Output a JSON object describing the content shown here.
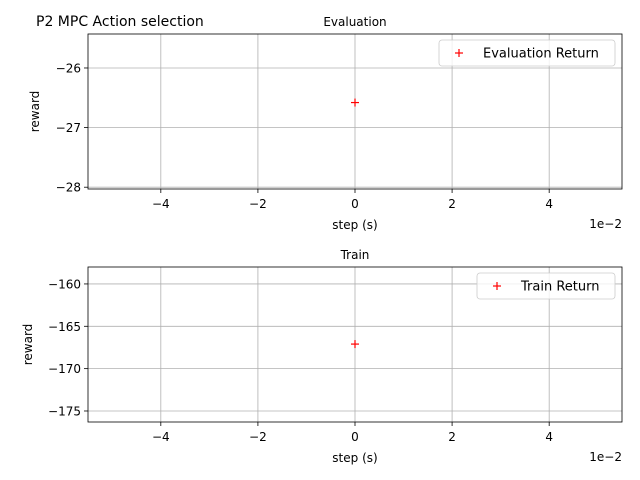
{
  "figure": {
    "suptitle": "P2 MPC Action selection"
  },
  "chart_data": [
    {
      "type": "scatter",
      "title": "Evaluation",
      "xlabel": "step (s)",
      "ylabel": "reward",
      "x_offset_label": "1e−2",
      "xlim": [
        -5.5,
        5.5
      ],
      "ylim": [
        -28.03,
        -25.43
      ],
      "xticks": [
        -4,
        -2,
        0,
        2,
        4
      ],
      "xtick_labels": [
        "−4",
        "−2",
        "0",
        "2",
        "4"
      ],
      "yticks": [
        -28,
        -27,
        -26
      ],
      "ytick_labels": [
        "−28",
        "−27",
        "−26"
      ],
      "grid": true,
      "legend_position": "top-right",
      "series": [
        {
          "name": "Evaluation Return",
          "marker": "+",
          "color": "#ff0000",
          "x": [
            0
          ],
          "y": [
            -26.58
          ]
        }
      ]
    },
    {
      "type": "scatter",
      "title": "Train",
      "xlabel": "step (s)",
      "ylabel": "reward",
      "x_offset_label": "1e−2",
      "xlim": [
        -5.5,
        5.5
      ],
      "ylim": [
        -176.3,
        -158.0
      ],
      "xticks": [
        -4,
        -2,
        0,
        2,
        4
      ],
      "xtick_labels": [
        "−4",
        "−2",
        "0",
        "2",
        "4"
      ],
      "yticks": [
        -175,
        -170,
        -165,
        -160
      ],
      "ytick_labels": [
        "−175",
        "−170",
        "−165",
        "−160"
      ],
      "grid": true,
      "legend_position": "top-right",
      "series": [
        {
          "name": "Train Return",
          "marker": "+",
          "color": "#ff0000",
          "x": [
            0
          ],
          "y": [
            -167.1
          ]
        }
      ]
    }
  ]
}
